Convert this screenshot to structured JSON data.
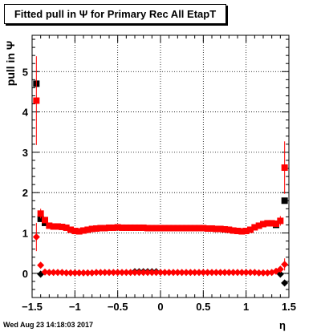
{
  "title": "Fitted pull in  Ψ  for Primary Rec All EtapT",
  "timestamp": "Wed Aug 23 14:18:03 2017",
  "chart_data": {
    "type": "scatter",
    "title": "Fitted pull in  Ψ  for Primary Rec All EtapT",
    "xlabel": "η",
    "ylabel": "pull in  Ψ",
    "xlim": [
      -1.5,
      1.5
    ],
    "ylim": [
      -0.6,
      5.9
    ],
    "grid": true,
    "x_ticks": [
      -1.5,
      -1,
      -0.5,
      0,
      0.5,
      1,
      1.5
    ],
    "x_tick_labels": [
      "−1.5",
      "−1",
      "−0.5",
      "0",
      "0.5",
      "1",
      "1.5"
    ],
    "y_ticks": [
      0,
      1,
      2,
      3,
      4,
      5
    ],
    "y_tick_labels": [
      "0",
      "1",
      "2",
      "3",
      "4",
      "5"
    ],
    "colors": {
      "black": "#000000",
      "red": "#ff0000"
    },
    "series": [
      {
        "color": "black",
        "marker": "square",
        "x": [
          -1.45,
          -1.4,
          -1.35,
          1.35,
          1.45
        ],
        "y": [
          4.7,
          1.35,
          1.25,
          1.2,
          1.8
        ]
      },
      {
        "color": "red",
        "marker": "square",
        "x": [
          -1.45,
          -1.4,
          -1.35,
          -1.3,
          -1.25,
          -1.2,
          -1.15,
          -1.1,
          -1.05,
          -1.0,
          -0.95,
          -0.9,
          -0.85,
          -0.8,
          -0.75,
          -0.7,
          -0.65,
          -0.6,
          -0.55,
          -0.5,
          -0.45,
          -0.4,
          -0.35,
          -0.3,
          -0.25,
          -0.2,
          -0.15,
          -0.1,
          -0.05,
          0.0,
          0.05,
          0.1,
          0.15,
          0.2,
          0.25,
          0.3,
          0.35,
          0.4,
          0.45,
          0.5,
          0.55,
          0.6,
          0.65,
          0.7,
          0.75,
          0.8,
          0.85,
          0.9,
          0.95,
          1.0,
          1.05,
          1.1,
          1.15,
          1.2,
          1.25,
          1.3,
          1.35,
          1.4,
          1.45
        ],
        "y": [
          4.28,
          1.48,
          1.32,
          1.18,
          1.16,
          1.16,
          1.15,
          1.13,
          1.08,
          1.05,
          1.04,
          1.06,
          1.08,
          1.1,
          1.11,
          1.12,
          1.12,
          1.13,
          1.13,
          1.14,
          1.13,
          1.13,
          1.13,
          1.13,
          1.13,
          1.13,
          1.12,
          1.12,
          1.12,
          1.12,
          1.12,
          1.12,
          1.12,
          1.12,
          1.12,
          1.12,
          1.12,
          1.12,
          1.12,
          1.12,
          1.11,
          1.11,
          1.1,
          1.1,
          1.09,
          1.08,
          1.06,
          1.05,
          1.04,
          1.05,
          1.08,
          1.14,
          1.18,
          1.22,
          1.24,
          1.24,
          1.23,
          1.3,
          2.62
        ],
        "yerr": [
          1.1,
          0.12,
          0.06,
          0.04,
          0.03,
          0.03,
          0.03,
          0.03,
          0.03,
          0.03,
          0.03,
          0.03,
          0.03,
          0.03,
          0.03,
          0.03,
          0.03,
          0.03,
          0.03,
          0.03,
          0.03,
          0.03,
          0.03,
          0.03,
          0.03,
          0.03,
          0.03,
          0.03,
          0.03,
          0.03,
          0.03,
          0.03,
          0.03,
          0.03,
          0.03,
          0.03,
          0.03,
          0.03,
          0.03,
          0.03,
          0.03,
          0.03,
          0.03,
          0.03,
          0.03,
          0.03,
          0.03,
          0.03,
          0.03,
          0.03,
          0.03,
          0.03,
          0.03,
          0.03,
          0.03,
          0.03,
          0.06,
          0.12,
          0.65
        ]
      },
      {
        "color": "black",
        "marker": "diamond",
        "x": [
          -1.4,
          -0.3,
          -0.25,
          -0.2,
          -0.15,
          -0.1,
          -0.05,
          1.4,
          1.45
        ],
        "y": [
          -0.02,
          0.04,
          0.04,
          0.04,
          0.04,
          0.04,
          0.04,
          -0.02,
          -0.24
        ]
      },
      {
        "color": "red",
        "marker": "diamond",
        "x": [
          -1.45,
          -1.4,
          -1.35,
          -1.3,
          -1.25,
          -1.2,
          -1.15,
          -1.1,
          -1.05,
          -1.0,
          -0.95,
          -0.9,
          -0.85,
          -0.8,
          -0.75,
          -0.7,
          -0.65,
          -0.6,
          -0.55,
          -0.5,
          -0.45,
          -0.4,
          -0.35,
          -0.3,
          -0.25,
          -0.2,
          -0.15,
          -0.1,
          -0.05,
          0.0,
          0.05,
          0.1,
          0.15,
          0.2,
          0.25,
          0.3,
          0.35,
          0.4,
          0.45,
          0.5,
          0.55,
          0.6,
          0.65,
          0.7,
          0.75,
          0.8,
          0.85,
          0.9,
          0.95,
          1.0,
          1.05,
          1.1,
          1.15,
          1.2,
          1.25,
          1.3,
          1.35,
          1.4,
          1.45
        ],
        "y": [
          0.9,
          0.2,
          0.03,
          0.02,
          0.02,
          0.02,
          0.02,
          0.01,
          0.01,
          0.01,
          0.01,
          0.01,
          0.01,
          0.01,
          0.02,
          0.02,
          0.02,
          0.02,
          0.02,
          0.02,
          0.02,
          0.02,
          0.02,
          0.02,
          0.02,
          0.02,
          0.02,
          0.02,
          0.02,
          0.02,
          0.02,
          0.02,
          0.02,
          0.02,
          0.02,
          0.02,
          0.02,
          0.02,
          0.02,
          0.02,
          0.02,
          0.02,
          0.02,
          0.02,
          0.02,
          0.02,
          0.02,
          0.02,
          0.02,
          0.02,
          0.02,
          0.02,
          0.01,
          0.01,
          0.01,
          0.02,
          0.05,
          0.1,
          0.22
        ],
        "yerr": [
          0.35,
          0.05,
          0.03,
          0.02,
          0.02,
          0.02,
          0.02,
          0.02,
          0.02,
          0.02,
          0.02,
          0.02,
          0.02,
          0.02,
          0.02,
          0.02,
          0.02,
          0.02,
          0.02,
          0.02,
          0.02,
          0.02,
          0.02,
          0.02,
          0.02,
          0.02,
          0.02,
          0.02,
          0.02,
          0.02,
          0.02,
          0.02,
          0.02,
          0.02,
          0.02,
          0.02,
          0.02,
          0.02,
          0.02,
          0.02,
          0.02,
          0.02,
          0.02,
          0.02,
          0.02,
          0.02,
          0.02,
          0.02,
          0.02,
          0.02,
          0.02,
          0.02,
          0.02,
          0.02,
          0.02,
          0.02,
          0.03,
          0.05,
          0.15
        ]
      }
    ]
  }
}
